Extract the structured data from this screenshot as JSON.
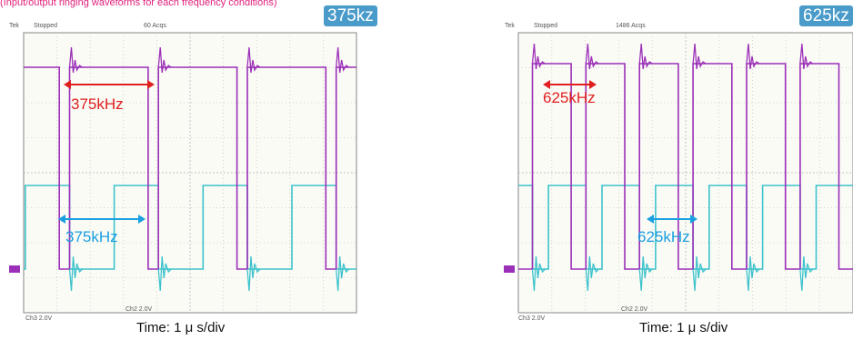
{
  "top_caption": "(Input/output ringing waveforms for each frequency conditions)",
  "colors": {
    "purple_trace": "#9b30b8",
    "cyan_trace": "#3cc2cc",
    "red_arrow": "#e02020",
    "blue_arrow": "#1aa0e0",
    "badge": "#4a9bc9"
  },
  "chart_data": [
    {
      "type": "line",
      "badge": "375kz",
      "scope_header": {
        "brand": "Tek",
        "state": "Stopped",
        "acqs": "60 Acqs"
      },
      "scope_footer": {
        "left": "Ch3   2.0V",
        "mid": "Ch2   2.0V"
      },
      "time_label": "Time: 1 μ s/div",
      "red_measure": "375kHz",
      "blue_measure": "375kHz",
      "frequency_khz": 375,
      "x_range_us": [
        0,
        10
      ],
      "series": [
        {
          "color": "purple",
          "rising_edges_us": [
            1.38,
            4.05,
            6.72,
            9.39
          ],
          "falling_edges_us": [
            1.07,
            3.74,
            6.41,
            9.08
          ]
        },
        {
          "color": "cyan",
          "rising_edges_us": [
            0.05,
            2.72,
            5.39,
            8.06
          ],
          "falling_edges_us": [
            1.38,
            4.05,
            6.72,
            9.39
          ]
        }
      ]
    },
    {
      "type": "line",
      "badge": "625kz",
      "scope_header": {
        "brand": "Tek",
        "state": "Stopped",
        "acqs": "1486 Acqs"
      },
      "scope_footer": {
        "left": "Ch3   2.0V",
        "mid": "Ch2   2.0V"
      },
      "time_label": "Time: 1 μ s/div",
      "red_measure": "625kHz",
      "blue_measure": "625kHz",
      "frequency_khz": 625,
      "x_range_us": [
        0,
        10
      ],
      "series": [
        {
          "color": "purple",
          "rising_edges_us": [
            0.42,
            2.02,
            3.62,
            5.22,
            6.82,
            8.42
          ],
          "falling_edges_us": [
            1.58,
            3.18,
            4.78,
            6.38,
            7.98,
            9.58
          ]
        },
        {
          "color": "cyan",
          "rising_edges_us": [
            0.9,
            2.5,
            4.1,
            5.7,
            7.3,
            8.9
          ],
          "falling_edges_us": [
            0.42,
            2.02,
            3.62,
            5.22,
            6.82,
            8.42
          ]
        }
      ]
    }
  ]
}
